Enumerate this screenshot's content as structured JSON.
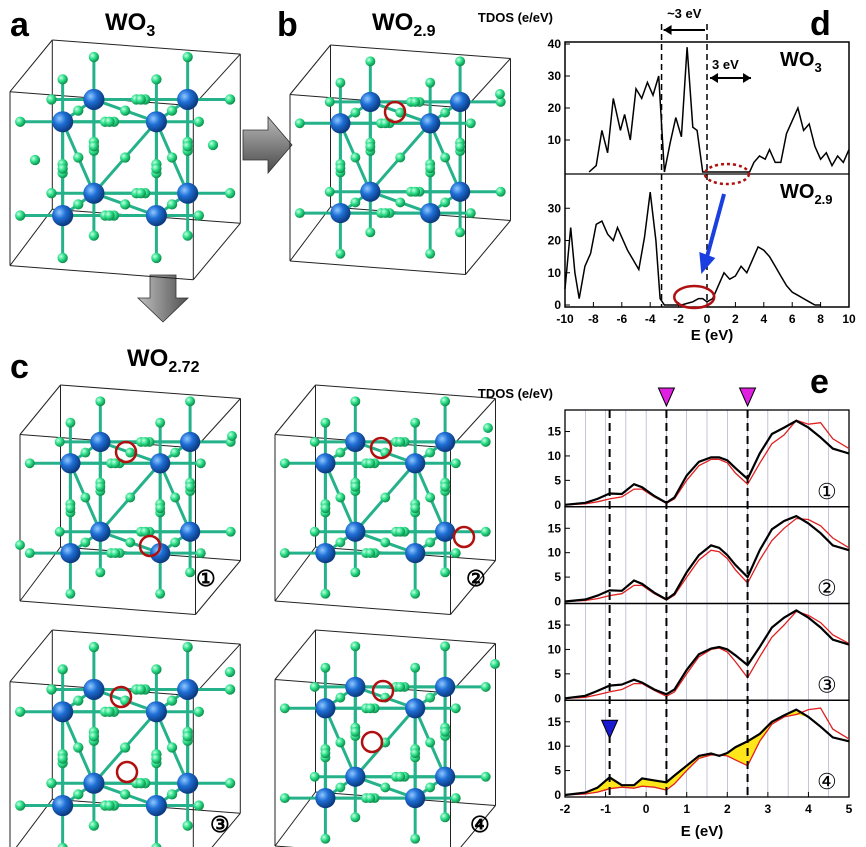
{
  "panels": {
    "a": {
      "letter": "a",
      "formula_main": "WO",
      "formula_sub": "3"
    },
    "b": {
      "letter": "b",
      "formula_main": "WO",
      "formula_sub": "2.9"
    },
    "c": {
      "letter": "c",
      "formula_main": "WO",
      "formula_sub": "2.72",
      "configs": [
        "①",
        "②",
        "③",
        "④"
      ]
    },
    "d": {
      "letter": "d"
    },
    "e": {
      "letter": "e"
    }
  },
  "colors": {
    "tungsten": "#1f6fd6",
    "oxygen": "#2ee08a",
    "vacancy_marker": "#b01010",
    "curve_black": "#000000",
    "curve_red": "#e02020",
    "fill_yellow": "#ffe61a",
    "marker_magenta": "#e020e0",
    "marker_blue": "#1a1ad0",
    "arrow_blue": "#1a3fe0"
  },
  "chart_data": [
    {
      "id": "d",
      "type": "line",
      "ylabel": "TDOS (e/eV)",
      "xlabel": "E (eV)",
      "xlim": [
        -10,
        10
      ],
      "xticks": [
        -10,
        -8,
        -6,
        -4,
        -2,
        0,
        2,
        4,
        6,
        8,
        10
      ],
      "annotations": {
        "gap_label_top": "~3 eV",
        "gap_label_right": "3 eV"
      },
      "dashed_x": [
        -3.2,
        0
      ],
      "subplots": [
        {
          "label_main": "WO",
          "label_sub": "3",
          "ylim": [
            0,
            40
          ],
          "yticks": [
            10,
            20,
            30,
            40
          ],
          "x": [
            -8.3,
            -7.8,
            -7.4,
            -7.0,
            -6.6,
            -6.1,
            -5.8,
            -5.4,
            -5.0,
            -4.6,
            -4.2,
            -3.8,
            -3.4,
            -3.0,
            -2.6,
            -2.2,
            -1.8,
            -1.4,
            -1.0,
            -0.7,
            -0.3,
            0,
            0.4,
            0.8,
            1.2,
            1.6,
            2.0,
            2.4,
            2.8,
            3.0,
            3.3,
            3.7,
            4.1,
            4.4,
            4.8,
            5.2,
            5.6,
            6.0,
            6.4,
            6.8,
            7.2,
            7.6,
            8.0,
            8.4,
            8.8,
            9.2,
            9.6,
            10
          ],
          "y": [
            0,
            2,
            13,
            6,
            23,
            13,
            18,
            10,
            26,
            23,
            28,
            24,
            30,
            0,
            9,
            17,
            11,
            39,
            14,
            13,
            0,
            0,
            0,
            0,
            0,
            0,
            0,
            0,
            0,
            0,
            3,
            5,
            4,
            7,
            3,
            3,
            12,
            16,
            20,
            13,
            15,
            8,
            4,
            6,
            2,
            5,
            3,
            7
          ]
        },
        {
          "label_main": "WO",
          "label_sub": "2.9",
          "ylim": [
            0,
            40
          ],
          "yticks": [
            0,
            10,
            20,
            30
          ],
          "x": [
            -10,
            -9.6,
            -9.3,
            -9.0,
            -8.6,
            -8.2,
            -7.8,
            -7.4,
            -7.0,
            -6.6,
            -6.3,
            -6.0,
            -5.6,
            -5.2,
            -4.8,
            -4.4,
            -4.0,
            -3.6,
            -3.3,
            -3.0,
            -2.6,
            -2.2,
            -1.8,
            -1.4,
            -1.0,
            -0.6,
            -0.3,
            0,
            0.4,
            0.8,
            1.2,
            1.6,
            2.0,
            2.4,
            2.8,
            3.2,
            3.6,
            4.0,
            4.4,
            4.8,
            5.2,
            5.6,
            6.0,
            6.4,
            6.8,
            7.2,
            7.6,
            8.0
          ],
          "y": [
            5,
            24,
            10,
            2,
            12,
            16,
            25,
            26,
            22,
            20,
            24,
            21,
            17,
            14,
            11,
            21,
            35,
            20,
            2,
            0,
            0,
            0,
            0,
            0.5,
            1,
            2,
            2,
            1,
            2,
            6,
            10,
            8,
            9,
            12,
            10,
            14,
            18,
            17,
            15,
            12,
            9,
            6,
            4,
            3,
            2,
            1,
            0,
            0
          ]
        }
      ]
    },
    {
      "id": "e",
      "type": "line",
      "ylabel": "TDOS (e/eV)",
      "xlabel": "E (eV)",
      "xlim": [
        -2,
        5
      ],
      "xticks": [
        -2,
        -1,
        0,
        1,
        2,
        3,
        4,
        5
      ],
      "dashed_x": [
        -0.9,
        0.5,
        2.5
      ],
      "magenta_markers_x": [
        0.5,
        2.5
      ],
      "blue_marker_x": -0.9,
      "subplots": [
        {
          "label": "①",
          "ylim": [
            0,
            19
          ],
          "yticks": [
            0,
            5,
            10,
            15
          ],
          "x": [
            -2,
            -1.5,
            -1.2,
            -0.9,
            -0.6,
            -0.3,
            -0.1,
            0.2,
            0.5,
            0.7,
            1.0,
            1.3,
            1.6,
            1.8,
            2.0,
            2.2,
            2.5,
            2.8,
            3.1,
            3.4,
            3.7,
            4.0,
            4.3,
            4.6,
            5
          ],
          "black": [
            0,
            0.4,
            1.2,
            2.3,
            2.2,
            4.2,
            3.6,
            1.8,
            0.4,
            1.5,
            6,
            8.8,
            9.7,
            9.7,
            9.1,
            7.5,
            5.3,
            10.5,
            14.5,
            15.8,
            17.2,
            15.8,
            13.8,
            11.5,
            10.5
          ],
          "red": [
            0,
            0.2,
            0.6,
            1.2,
            1.6,
            3.2,
            3.2,
            1.6,
            0.3,
            1.2,
            5,
            8,
            9.3,
            9.3,
            8.6,
            6.5,
            4.2,
            8.5,
            12.5,
            14.3,
            17.3,
            16.5,
            16.8,
            13.5,
            11.5
          ]
        },
        {
          "label": "②",
          "ylim": [
            0,
            19
          ],
          "yticks": [
            0,
            5,
            10,
            15
          ],
          "x": [
            -2,
            -1.5,
            -1.2,
            -0.9,
            -0.6,
            -0.3,
            -0.1,
            0.2,
            0.5,
            0.7,
            1.0,
            1.3,
            1.6,
            1.8,
            2.0,
            2.2,
            2.5,
            2.8,
            3.1,
            3.4,
            3.7,
            4.0,
            4.3,
            4.6,
            5
          ],
          "black": [
            0,
            0.4,
            1.2,
            2.3,
            2.2,
            4.3,
            3.6,
            1.8,
            0.4,
            1.6,
            6,
            9.5,
            11.5,
            11,
            9.5,
            7.5,
            5,
            10.5,
            14.8,
            16.5,
            17.5,
            16,
            14,
            11.5,
            10.5
          ],
          "red": [
            0,
            0.2,
            0.6,
            1.2,
            1.6,
            3.3,
            3.3,
            1.6,
            0.3,
            1.3,
            5,
            8.5,
            10.5,
            10.2,
            8.8,
            6.5,
            3.8,
            8.5,
            12.5,
            15,
            17,
            16.8,
            15.5,
            13,
            11
          ]
        },
        {
          "label": "③",
          "ylim": [
            0,
            19
          ],
          "yticks": [
            0,
            5,
            10,
            15
          ],
          "x": [
            -2,
            -1.5,
            -1.2,
            -0.9,
            -0.6,
            -0.3,
            -0.1,
            0.2,
            0.5,
            0.7,
            1.0,
            1.3,
            1.6,
            1.8,
            2.0,
            2.2,
            2.5,
            2.8,
            3.1,
            3.4,
            3.7,
            4.0,
            4.3,
            4.6,
            5
          ],
          "black": [
            0,
            0.5,
            1.5,
            2.6,
            2.8,
            3.8,
            3.2,
            1.8,
            0.8,
            1.8,
            5.8,
            9,
            10.2,
            10.5,
            10,
            8.8,
            6.8,
            10.5,
            14.5,
            16.5,
            18,
            16.5,
            14.5,
            12,
            11
          ],
          "red": [
            0,
            0.2,
            0.7,
            1.3,
            1.8,
            3,
            3,
            1.6,
            0.4,
            1.3,
            5,
            8.5,
            10,
            10.3,
            9.5,
            7.5,
            4.2,
            8.5,
            12.5,
            15,
            17.8,
            17,
            15.5,
            13,
            11.2
          ]
        },
        {
          "label": "④",
          "ylim": [
            0,
            19
          ],
          "yticks": [
            0,
            5,
            10,
            15
          ],
          "x": [
            -2,
            -1.5,
            -1.2,
            -0.9,
            -0.6,
            -0.3,
            -0.1,
            0.2,
            0.5,
            0.7,
            1.0,
            1.3,
            1.6,
            1.8,
            2.0,
            2.2,
            2.5,
            2.8,
            3.1,
            3.4,
            3.7,
            4.0,
            4.3,
            4.6,
            5
          ],
          "black": [
            0,
            0.5,
            1.5,
            3.6,
            2,
            2,
            3.4,
            3,
            2.6,
            4,
            6,
            8,
            8.5,
            8,
            8.6,
            9.8,
            11,
            12.5,
            15,
            16.3,
            17.5,
            16,
            14,
            11.8,
            11
          ],
          "red": [
            0,
            0.2,
            0.6,
            1.3,
            1.6,
            1.4,
            1.8,
            1.6,
            1,
            2.3,
            5,
            7.5,
            8.2,
            8.2,
            8,
            7.2,
            6,
            11,
            14.5,
            16,
            16.5,
            17.5,
            17.8,
            13.5,
            11.5
          ]
        }
      ]
    }
  ]
}
